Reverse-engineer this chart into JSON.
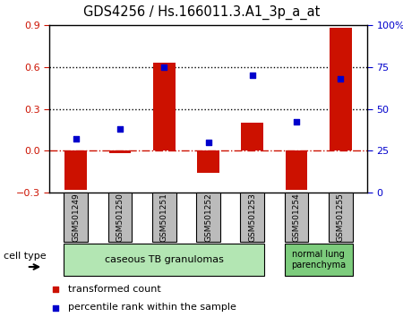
{
  "title": "GDS4256 / Hs.166011.3.A1_3p_a_at",
  "samples": [
    "GSM501249",
    "GSM501250",
    "GSM501251",
    "GSM501252",
    "GSM501253",
    "GSM501254",
    "GSM501255"
  ],
  "bar_values": [
    -0.28,
    -0.02,
    0.63,
    -0.16,
    0.2,
    -0.28,
    0.88
  ],
  "percentile_values": [
    32,
    38,
    75,
    30,
    70,
    42,
    68
  ],
  "bar_color": "#cc1100",
  "marker_color": "#0000cc",
  "left_ylim": [
    -0.3,
    0.9
  ],
  "left_yticks": [
    -0.3,
    0.0,
    0.3,
    0.6,
    0.9
  ],
  "right_ylim": [
    0,
    100
  ],
  "right_yticks": [
    0,
    25,
    50,
    75,
    100
  ],
  "right_yticklabels": [
    "0",
    "25",
    "50",
    "75",
    "100%"
  ],
  "dotted_line_y": [
    0.3,
    0.6
  ],
  "dashed_line_y": 0.0,
  "group1_indices": [
    0,
    1,
    2,
    3,
    4
  ],
  "group2_indices": [
    5,
    6
  ],
  "group1_label": "caseous TB granulomas",
  "group1_color": "#b3e6b3",
  "group2_label": "normal lung\nparenchyma",
  "group2_color": "#7dcc7d",
  "cell_type_label": "cell type",
  "legend_bar_label": "transformed count",
  "legend_marker_label": "percentile rank within the sample",
  "bar_width": 0.5,
  "tick_label_color": "#bbbbbb",
  "background_color": "#ffffff"
}
